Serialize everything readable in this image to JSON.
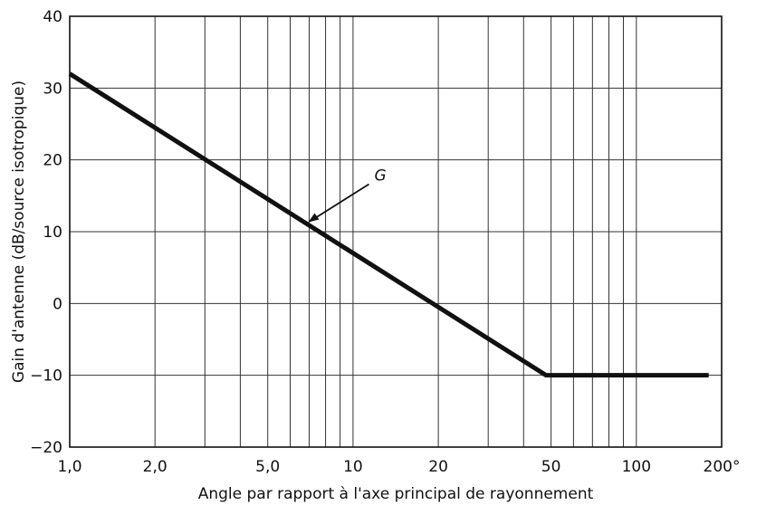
{
  "chart_data": {
    "type": "line",
    "title": "",
    "xlabel": "Angle par rapport à l'axe principal de rayonnement",
    "ylabel": "Gain d'antenne (dB/source isotropique)",
    "x_scale": "log",
    "xlim": [
      1,
      200
    ],
    "ylim": [
      -20,
      40
    ],
    "x_ticks": [
      1,
      2,
      5,
      10,
      20,
      50,
      100,
      200
    ],
    "x_tick_labels": [
      "1,0",
      "2,0",
      "5,0",
      "10",
      "20",
      "50",
      "100",
      "200°"
    ],
    "y_ticks": [
      -20,
      -10,
      0,
      10,
      20,
      30,
      40
    ],
    "y_tick_labels": [
      "−20",
      "−10",
      "0",
      "10",
      "20",
      "30",
      "40"
    ],
    "grid": true,
    "series": [
      {
        "name": "G",
        "x": [
          1,
          48,
          180
        ],
        "y": [
          32,
          -10,
          -10
        ]
      }
    ],
    "annotations": [
      {
        "text": "G",
        "x": 6.9,
        "y": 11.2
      }
    ],
    "colors": {
      "line": "#111111",
      "grid": "#333333"
    }
  }
}
